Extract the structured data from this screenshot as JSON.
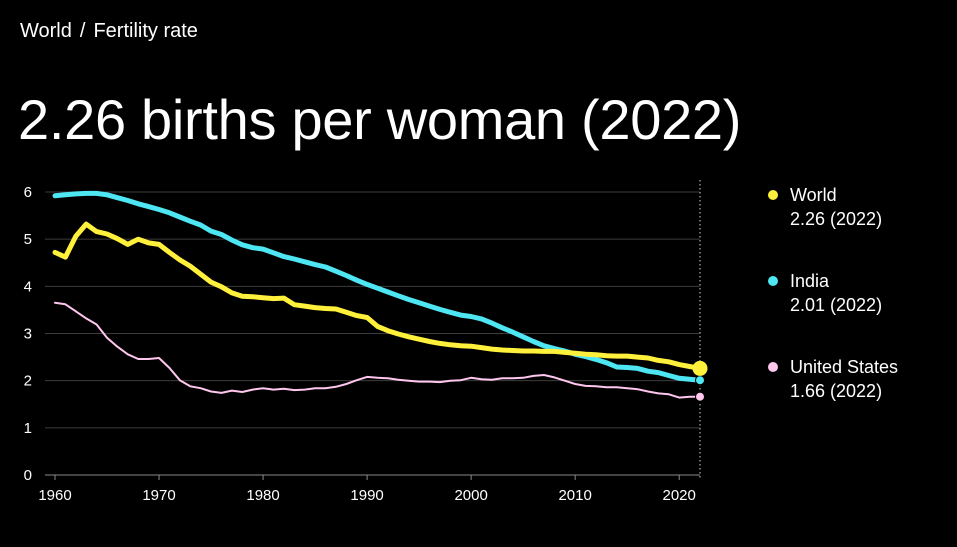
{
  "breadcrumb": {
    "root": "World",
    "separator": "/",
    "current": "Fertility rate"
  },
  "headline": "2.26 births per woman (2022)",
  "legend": [
    {
      "name": "World",
      "value": "2.26 (2022)",
      "color": "#fff03c"
    },
    {
      "name": "India",
      "value": "2.01 (2022)",
      "color": "#4ee6f2"
    },
    {
      "name": "United States",
      "value": "1.66 (2022)",
      "color": "#ffc6ee"
    }
  ],
  "chart_data": {
    "type": "line",
    "title": "2.26 births per woman (2022)",
    "xlabel": "",
    "ylabel": "",
    "xlim": [
      1960,
      2022
    ],
    "ylim": [
      0,
      6
    ],
    "x_ticks": [
      1960,
      1970,
      1980,
      1990,
      2000,
      2010,
      2020
    ],
    "y_ticks": [
      0,
      1,
      2,
      3,
      4,
      5,
      6
    ],
    "grid": true,
    "marker_year": 2022,
    "series": [
      {
        "name": "World",
        "color": "#fff03c",
        "width": 5,
        "x": [
          1960,
          1961,
          1962,
          1963,
          1964,
          1965,
          1966,
          1967,
          1968,
          1969,
          1970,
          1971,
          1972,
          1973,
          1974,
          1975,
          1976,
          1977,
          1978,
          1979,
          1980,
          1981,
          1982,
          1983,
          1984,
          1985,
          1986,
          1987,
          1988,
          1989,
          1990,
          1991,
          1992,
          1993,
          1994,
          1995,
          1996,
          1997,
          1998,
          1999,
          2000,
          2001,
          2002,
          2003,
          2004,
          2005,
          2006,
          2007,
          2008,
          2009,
          2010,
          2011,
          2012,
          2013,
          2014,
          2015,
          2016,
          2017,
          2018,
          2019,
          2020,
          2021,
          2022
        ],
        "y": [
          4.72,
          4.62,
          5.06,
          5.32,
          5.16,
          5.11,
          5.01,
          4.89,
          5.0,
          4.92,
          4.89,
          4.72,
          4.56,
          4.43,
          4.26,
          4.09,
          3.99,
          3.86,
          3.79,
          3.78,
          3.76,
          3.74,
          3.75,
          3.61,
          3.58,
          3.55,
          3.53,
          3.52,
          3.45,
          3.38,
          3.34,
          3.15,
          3.06,
          2.99,
          2.93,
          2.88,
          2.83,
          2.79,
          2.76,
          2.74,
          2.73,
          2.7,
          2.67,
          2.65,
          2.64,
          2.63,
          2.63,
          2.62,
          2.62,
          2.6,
          2.58,
          2.56,
          2.55,
          2.53,
          2.52,
          2.52,
          2.5,
          2.48,
          2.43,
          2.4,
          2.34,
          2.3,
          2.26
        ],
        "end_label": "2.26"
      },
      {
        "name": "India",
        "color": "#4ee6f2",
        "width": 5,
        "x": [
          1960,
          1961,
          1962,
          1963,
          1964,
          1965,
          1966,
          1967,
          1968,
          1969,
          1970,
          1971,
          1972,
          1973,
          1974,
          1975,
          1976,
          1977,
          1978,
          1979,
          1980,
          1981,
          1982,
          1983,
          1984,
          1985,
          1986,
          1987,
          1988,
          1989,
          1990,
          1991,
          1992,
          1993,
          1994,
          1995,
          1996,
          1997,
          1998,
          1999,
          2000,
          2001,
          2002,
          2003,
          2004,
          2005,
          2006,
          2007,
          2008,
          2009,
          2010,
          2011,
          2012,
          2013,
          2014,
          2015,
          2016,
          2017,
          2018,
          2019,
          2020,
          2021,
          2022
        ],
        "y": [
          5.92,
          5.94,
          5.96,
          5.97,
          5.97,
          5.94,
          5.88,
          5.82,
          5.75,
          5.69,
          5.63,
          5.56,
          5.47,
          5.38,
          5.3,
          5.17,
          5.1,
          4.98,
          4.88,
          4.82,
          4.79,
          4.71,
          4.63,
          4.58,
          4.52,
          4.46,
          4.41,
          4.32,
          4.23,
          4.13,
          4.04,
          3.96,
          3.88,
          3.8,
          3.72,
          3.65,
          3.58,
          3.51,
          3.45,
          3.39,
          3.36,
          3.31,
          3.22,
          3.12,
          3.03,
          2.93,
          2.83,
          2.74,
          2.68,
          2.63,
          2.56,
          2.51,
          2.45,
          2.38,
          2.29,
          2.28,
          2.26,
          2.2,
          2.17,
          2.11,
          2.05,
          2.03,
          2.01
        ],
        "end_label": "2.01"
      },
      {
        "name": "United States",
        "color": "#ffc6ee",
        "width": 2,
        "x": [
          1960,
          1961,
          1962,
          1963,
          1964,
          1965,
          1966,
          1967,
          1968,
          1969,
          1970,
          1971,
          1972,
          1973,
          1974,
          1975,
          1976,
          1977,
          1978,
          1979,
          1980,
          1981,
          1982,
          1983,
          1984,
          1985,
          1986,
          1987,
          1988,
          1989,
          1990,
          1991,
          1992,
          1993,
          1994,
          1995,
          1996,
          1997,
          1998,
          1999,
          2000,
          2001,
          2002,
          2003,
          2004,
          2005,
          2006,
          2007,
          2008,
          2009,
          2010,
          2011,
          2012,
          2013,
          2014,
          2015,
          2016,
          2017,
          2018,
          2019,
          2020,
          2021,
          2022
        ],
        "y": [
          3.65,
          3.62,
          3.47,
          3.32,
          3.19,
          2.91,
          2.72,
          2.56,
          2.46,
          2.46,
          2.48,
          2.27,
          2.01,
          1.88,
          1.84,
          1.77,
          1.74,
          1.79,
          1.76,
          1.81,
          1.84,
          1.81,
          1.83,
          1.8,
          1.81,
          1.84,
          1.84,
          1.87,
          1.93,
          2.01,
          2.08,
          2.06,
          2.05,
          2.02,
          2.0,
          1.98,
          1.98,
          1.97,
          2.0,
          2.01,
          2.06,
          2.03,
          2.02,
          2.05,
          2.05,
          2.06,
          2.1,
          2.12,
          2.07,
          2.0,
          1.93,
          1.89,
          1.88,
          1.86,
          1.86,
          1.84,
          1.82,
          1.77,
          1.73,
          1.71,
          1.64,
          1.66,
          1.66
        ],
        "end_label": "1.66"
      }
    ]
  }
}
